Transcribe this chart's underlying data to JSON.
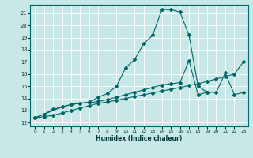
{
  "xlabel": "Humidex (Indice chaleur)",
  "bg_color": "#c8e8e8",
  "grid_color": "#ffffff",
  "line_color": "#006666",
  "xlim": [
    -0.5,
    23.5
  ],
  "ylim": [
    11.7,
    21.7
  ],
  "xticks": [
    0,
    1,
    2,
    3,
    4,
    5,
    6,
    7,
    8,
    9,
    10,
    11,
    12,
    13,
    14,
    15,
    16,
    17,
    18,
    19,
    20,
    21,
    22,
    23
  ],
  "yticks": [
    12,
    13,
    14,
    15,
    16,
    17,
    18,
    19,
    20,
    21
  ],
  "curve1_x": [
    0,
    1,
    2,
    3,
    4,
    5,
    6,
    7,
    8,
    9,
    10,
    11,
    12,
    13,
    14,
    15,
    16,
    17,
    18,
    19
  ],
  "curve1_y": [
    12.4,
    12.7,
    13.1,
    13.3,
    13.5,
    13.6,
    13.7,
    14.1,
    14.4,
    15.0,
    16.5,
    17.2,
    18.5,
    19.2,
    21.3,
    21.3,
    21.1,
    19.2,
    15.0,
    14.5
  ],
  "curve2_x": [
    0,
    1,
    2,
    3,
    4,
    5,
    6,
    7,
    8,
    9,
    10,
    11,
    12,
    13,
    14,
    15,
    16,
    17,
    18,
    19,
    20,
    21,
    22,
    23
  ],
  "curve2_y": [
    12.4,
    12.5,
    12.6,
    12.8,
    13.0,
    13.2,
    13.4,
    13.6,
    13.7,
    13.85,
    14.0,
    14.15,
    14.3,
    14.45,
    14.6,
    14.75,
    14.9,
    15.05,
    15.2,
    15.4,
    15.6,
    15.8,
    16.0,
    17.0
  ],
  "curve3_x": [
    0,
    3,
    4,
    5,
    6,
    7,
    8,
    9,
    10,
    11,
    12,
    13,
    14,
    15,
    16,
    17,
    18,
    19,
    20,
    21,
    22,
    23
  ],
  "curve3_y": [
    12.4,
    13.3,
    13.5,
    13.6,
    13.65,
    13.75,
    13.9,
    14.1,
    14.3,
    14.5,
    14.7,
    14.9,
    15.1,
    15.2,
    15.3,
    17.1,
    14.3,
    14.5,
    14.5,
    16.1,
    14.3,
    14.5
  ]
}
